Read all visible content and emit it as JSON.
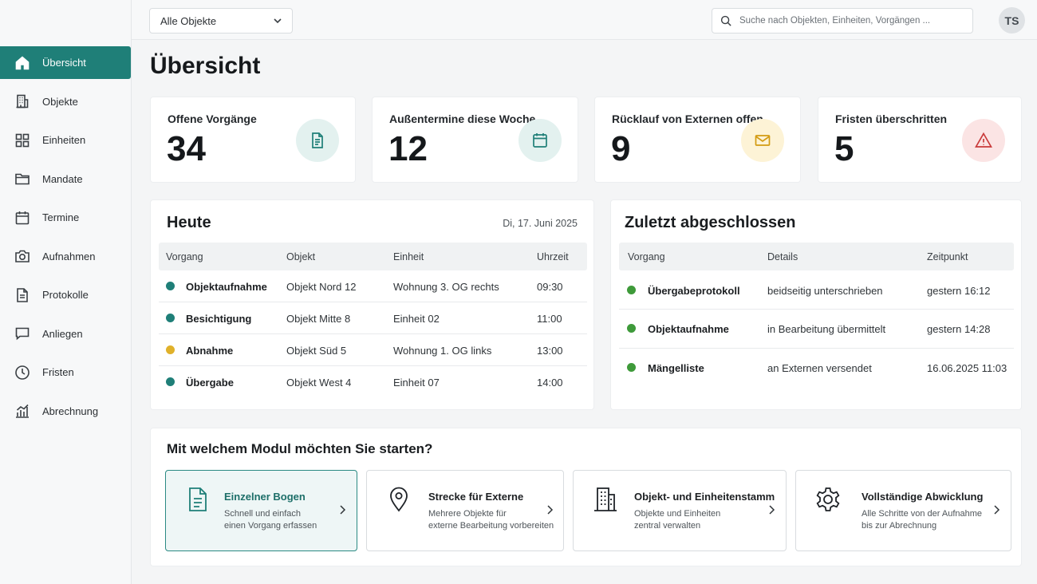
{
  "topbar": {
    "object_select": "Alle Objekte",
    "search_placeholder": "Suche nach Objekten, Einheiten, Vorgängen ...",
    "avatar_initials": "TS"
  },
  "sidebar": {
    "items": [
      {
        "label": "Übersicht",
        "icon": "home-icon",
        "active": true
      },
      {
        "label": "Objekte",
        "icon": "building-icon"
      },
      {
        "label": "Einheiten",
        "icon": "grid-icon"
      },
      {
        "label": "Mandate",
        "icon": "folder-icon"
      },
      {
        "label": "Termine",
        "icon": "calendar-icon"
      },
      {
        "label": "Aufnahmen",
        "icon": "camera-icon"
      },
      {
        "label": "Protokolle",
        "icon": "document-icon"
      },
      {
        "label": "Anliegen",
        "icon": "chat-icon"
      },
      {
        "label": "Fristen",
        "icon": "clock-icon"
      },
      {
        "label": "Abrechnung",
        "icon": "bar-chart-icon"
      }
    ]
  },
  "page": {
    "title": "Übersicht"
  },
  "kpis": [
    {
      "label": "Offene Vorgänge",
      "value": "34",
      "icon": "document-icon",
      "bg": "#e3f1ef",
      "color": "#1f7f78"
    },
    {
      "label": "Außentermine diese Woche",
      "value": "12",
      "icon": "calendar-icon",
      "bg": "#e3f1ef",
      "color": "#1f7f78"
    },
    {
      "label": "Rücklauf von Externen offen",
      "value": "9",
      "icon": "mail-icon",
      "bg": "#fdf3d6",
      "color": "#d39b12"
    },
    {
      "label": "Fristen überschritten",
      "value": "5",
      "icon": "warning-icon",
      "bg": "#fbe4e4",
      "color": "#c93a3a"
    }
  ],
  "today": {
    "title": "Heute",
    "date": "Di, 17. Juni 2025",
    "columns": [
      "Vorgang",
      "Objekt",
      "Einheit",
      "Uhrzeit"
    ],
    "rows": [
      {
        "vorgang": "Objektaufnahme",
        "objekt": "Objekt Nord 12",
        "einheit": "Wohnung 3. OG rechts",
        "uhrzeit": "09:30",
        "status_color": "#1f7f78"
      },
      {
        "vorgang": "Besichtigung",
        "objekt": "Objekt Mitte 8",
        "einheit": "Einheit 02",
        "uhrzeit": "11:00",
        "status_color": "#1f7f78"
      },
      {
        "vorgang": "Abnahme",
        "objekt": "Objekt Süd 5",
        "einheit": "Wohnung 1. OG links",
        "uhrzeit": "13:00",
        "status_color": "#e0b12a"
      },
      {
        "vorgang": "Übergabe",
        "objekt": "Objekt West 4",
        "einheit": "Einheit 07",
        "uhrzeit": "14:00",
        "status_color": "#1f7f78"
      }
    ]
  },
  "recent": {
    "title": "Zuletzt abgeschlossen",
    "columns": [
      "Vorgang",
      "Details",
      "Zeitpunkt"
    ],
    "rows": [
      {
        "vorgang": "Übergabeprotokoll",
        "details": "beidseitig unterschrieben",
        "zeitpunkt": "gestern 16:12",
        "status_color": "#3e9a3a"
      },
      {
        "vorgang": "Objektaufnahme",
        "details": "in Bearbeitung übermittelt",
        "zeitpunkt": "gestern 14:28",
        "status_color": "#3e9a3a"
      },
      {
        "vorgang": "Mängelliste",
        "details": "an Externen versendet",
        "zeitpunkt": "16.06.2025 11:03",
        "status_color": "#3e9a3a"
      }
    ]
  },
  "modules": {
    "title": "Mit welchem Modul möchten Sie starten?",
    "cards": [
      {
        "title": "Einzelner Bogen",
        "line1": "Schnell und einfach",
        "line2": "einen Vorgang erfassen",
        "icon": "document-icon",
        "selected": true
      },
      {
        "title": "Strecke für Externe",
        "line1": "Mehrere Objekte für",
        "line2": "externe Bearbeitung vorbereiten",
        "icon": "map-pin-icon"
      },
      {
        "title": "Objekt- und Einheitenstamm",
        "line1": "Objekte und Einheiten",
        "line2": "zentral verwalten",
        "icon": "building-icon"
      },
      {
        "title": "Vollständige Abwicklung",
        "line1": "Alle Schritte von der Aufnahme",
        "line2": "bis zur Abrechnung",
        "icon": "gear-icon"
      }
    ]
  }
}
